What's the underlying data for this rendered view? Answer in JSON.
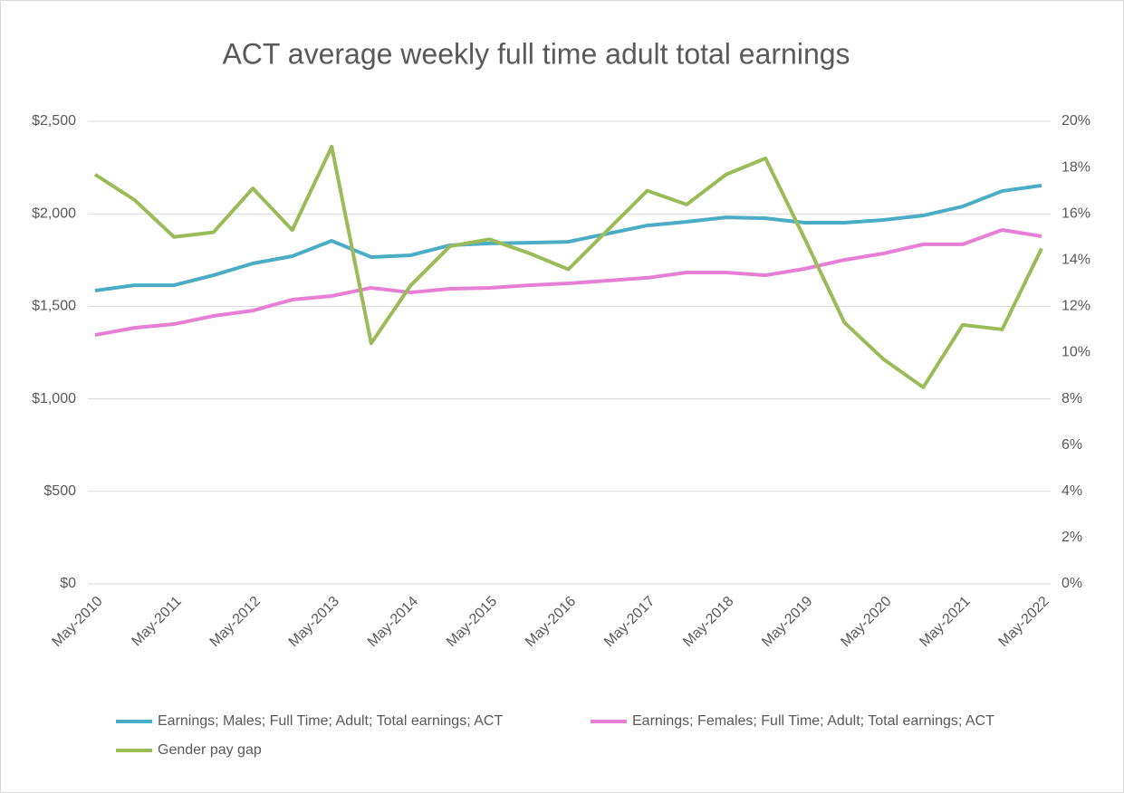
{
  "chart_data": {
    "type": "line",
    "title": "ACT average weekly full time adult total earnings",
    "categories": [
      "May-2010",
      null,
      "May-2011",
      null,
      "May-2012",
      null,
      "May-2013",
      null,
      "May-2014",
      null,
      "May-2015",
      null,
      "May-2016",
      null,
      "May-2017",
      null,
      "May-2018",
      null,
      "May-2019",
      null,
      "May-2020",
      null,
      "May-2021",
      null,
      "May-2022"
    ],
    "series": [
      {
        "name": "Earnings; Males; Full Time; Adult; Total earnings; ACT",
        "color": "#4bacc6",
        "values": [
          1585,
          1614,
          1614,
          1668,
          1732,
          1771,
          1854,
          1766,
          1776,
          1830,
          1840,
          1844,
          1849,
          1893,
          1937,
          1957,
          1981,
          1976,
          1952,
          1952,
          1967,
          1991,
          2040,
          2123,
          2153
        ]
      },
      {
        "name": "Earnings; Females; Full Time; Adult; Total earnings; ACT",
        "color": "#e67fd4",
        "values": [
          1345,
          1384,
          1404,
          1448,
          1477,
          1536,
          1556,
          1600,
          1575,
          1595,
          1600,
          1614,
          1624,
          1639,
          1654,
          1683,
          1683,
          1668,
          1703,
          1751,
          1786,
          1835,
          1835,
          1913,
          1879
        ]
      },
      {
        "name": "Gender pay gap",
        "color": "#9bbb59",
        "axis": "y2",
        "values": [
          17.7,
          16.6,
          15.0,
          15.2,
          17.1,
          15.3,
          18.9,
          10.4,
          12.9,
          14.6,
          14.9,
          14.3,
          13.6,
          15.3,
          17.0,
          16.4,
          17.7,
          18.4,
          14.9,
          11.3,
          9.7,
          8.5,
          11.2,
          11.0,
          14.5
        ]
      }
    ],
    "ylim": [
      0,
      2500
    ],
    "yticks": [
      {
        "value": 0,
        "label": "$0"
      },
      {
        "value": 500,
        "label": "$500"
      },
      {
        "value": 1000,
        "label": "$1,000"
      },
      {
        "value": 1500,
        "label": "$1,500"
      },
      {
        "value": 2000,
        "label": "$2,000"
      },
      {
        "value": 2500,
        "label": "$2,500"
      }
    ],
    "y2lim": [
      0,
      20
    ],
    "y2ticks": [
      {
        "value": 0,
        "label": "0%"
      },
      {
        "value": 2,
        "label": "2%"
      },
      {
        "value": 4,
        "label": "4%"
      },
      {
        "value": 6,
        "label": "6%"
      },
      {
        "value": 8,
        "label": "8%"
      },
      {
        "value": 10,
        "label": "10%"
      },
      {
        "value": 12,
        "label": "12%"
      },
      {
        "value": 14,
        "label": "14%"
      },
      {
        "value": 16,
        "label": "16%"
      },
      {
        "value": 18,
        "label": "18%"
      },
      {
        "value": 20,
        "label": "20%"
      }
    ],
    "grid": true,
    "legend": "bottom"
  }
}
